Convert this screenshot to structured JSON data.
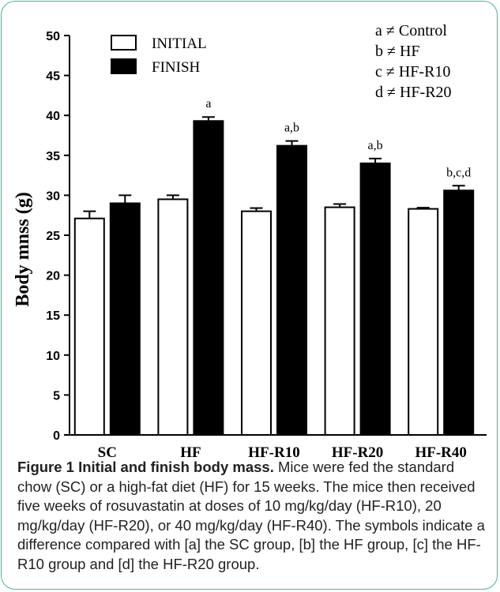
{
  "chart_data": {
    "type": "bar",
    "categories": [
      "SC",
      "HF",
      "HF-R10",
      "HF-R20",
      "HF-R40"
    ],
    "series": [
      {
        "name": "INITIAL",
        "values": [
          27.1,
          29.5,
          28.0,
          28.5,
          28.3
        ],
        "errors": [
          0.9,
          0.5,
          0.4,
          0.4,
          0.15
        ],
        "fill": "#ffffff"
      },
      {
        "name": "FINISH",
        "values": [
          29.0,
          39.3,
          36.2,
          34.0,
          30.6
        ],
        "errors": [
          1.0,
          0.5,
          0.6,
          0.6,
          0.6
        ],
        "fill": "#000000"
      }
    ],
    "significance_labels": [
      "",
      "a",
      "a,b",
      "a,b",
      "b,c,d"
    ],
    "ylabel": "Body mnss (g)",
    "xlabel": "",
    "ylim": [
      0,
      50
    ],
    "yticks": [
      0,
      5,
      10,
      15,
      20,
      25,
      30,
      35,
      40,
      45,
      50
    ],
    "legend_placement": "top-left",
    "grid": false,
    "key_placement": "top-right",
    "key": [
      {
        "letter": "a",
        "text": "Control"
      },
      {
        "letter": "b",
        "text": "HF"
      },
      {
        "letter": "c",
        "text": "HF-R10"
      },
      {
        "letter": "d",
        "text": "HF-R20"
      }
    ],
    "neq_symbol": "≠"
  },
  "caption": {
    "title": "Figure 1 Initial and finish body mass.",
    "text": " Mice were fed the standard chow (SC) or a high-fat diet (HF) for 15 weeks. The mice then received five weeks of rosuvastatin at doses of 10 mg/kg/day (HF-R10), 20 mg/kg/day (HF-R20), or 40 mg/kg/day (HF-R40). The symbols indicate a difference compared with [a] the SC group, [b] the HF group, [c] the HF-R10 group and [d] the HF-R20 group."
  },
  "colors": {
    "frame": "#3fb9a0",
    "axis": "#000000",
    "text": "#000000"
  }
}
